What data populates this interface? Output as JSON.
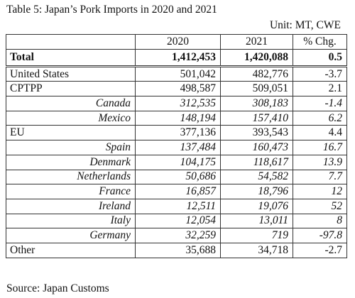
{
  "title": "Table 5: Japan’s Pork Imports in 2020 and 2021",
  "unit": "Unit:  MT, CWE",
  "columns": [
    "",
    "2020",
    "2021",
    "% Chg."
  ],
  "rows": [
    {
      "label": "Total",
      "v2020": "1,412,453",
      "v2021": "1,420,088",
      "chg": "0.5",
      "kind": "total"
    },
    {
      "label": "United States",
      "v2020": "501,042",
      "v2021": "482,776",
      "chg": "-3.7",
      "kind": "main"
    },
    {
      "label": "CPTPP",
      "v2020": "498,587",
      "v2021": "509,051",
      "chg": "2.1",
      "kind": "main"
    },
    {
      "label": "Canada",
      "v2020": "312,535",
      "v2021": "308,183",
      "chg": "-1.4",
      "kind": "sub"
    },
    {
      "label": "Mexico",
      "v2020": "148,194",
      "v2021": "157,410",
      "chg": "6.2",
      "kind": "sub"
    },
    {
      "label": "EU",
      "v2020": "377,136",
      "v2021": "393,543",
      "chg": "4.4",
      "kind": "main"
    },
    {
      "label": "Spain",
      "v2020": "137,484",
      "v2021": "160,473",
      "chg": "16.7",
      "kind": "sub"
    },
    {
      "label": "Denmark",
      "v2020": "104,175",
      "v2021": "118,617",
      "chg": "13.9",
      "kind": "sub"
    },
    {
      "label": "Netherlands",
      "v2020": "50,686",
      "v2021": "54,582",
      "chg": "7.7",
      "kind": "sub"
    },
    {
      "label": "France",
      "v2020": "16,857",
      "v2021": "18,796",
      "chg": "12",
      "kind": "sub"
    },
    {
      "label": "Ireland",
      "v2020": "12,511",
      "v2021": "19,076",
      "chg": "52",
      "kind": "sub"
    },
    {
      "label": "Italy",
      "v2020": "12,054",
      "v2021": "13,011",
      "chg": "8",
      "kind": "sub"
    },
    {
      "label": "Germany",
      "v2020": "32,259",
      "v2021": "719",
      "chg": "-97.8",
      "kind": "sub"
    },
    {
      "label": "Other",
      "v2020": "35,688",
      "v2021": "34,718",
      "chg": "-2.7",
      "kind": "main"
    }
  ],
  "source": "Source: Japan Customs"
}
